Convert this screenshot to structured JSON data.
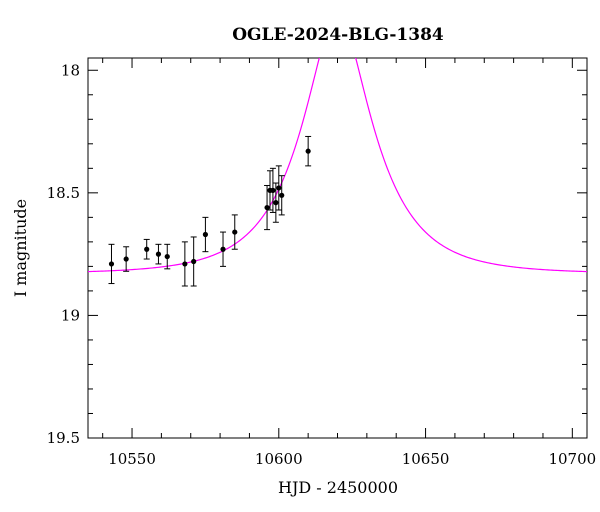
{
  "chart_data": {
    "type": "scatter",
    "title": "OGLE-2024-BLG-1384",
    "xlabel": "HJD - 2450000",
    "ylabel": "I magnitude",
    "xlim": [
      10535,
      10705
    ],
    "ylim": [
      19.5,
      17.95
    ],
    "y_inverted": true,
    "x_ticks": [
      10550,
      10600,
      10650,
      10700
    ],
    "x_tick_labels": [
      "10550",
      "10600",
      "10650",
      "10700"
    ],
    "y_ticks": [
      18,
      18.5,
      19,
      19.5
    ],
    "y_tick_labels": [
      "18",
      "18.5",
      "19",
      "19.5"
    ],
    "grid": false,
    "model_color": "#ff00ff",
    "model": {
      "t0": 10620,
      "u0": 0.4,
      "tE": 23,
      "baseline": 18.83
    },
    "points": [
      {
        "x": 10543,
        "y": 18.79,
        "err": 0.08
      },
      {
        "x": 10548,
        "y": 18.77,
        "err": 0.05
      },
      {
        "x": 10555,
        "y": 18.73,
        "err": 0.04
      },
      {
        "x": 10559,
        "y": 18.75,
        "err": 0.04
      },
      {
        "x": 10562,
        "y": 18.76,
        "err": 0.05
      },
      {
        "x": 10568,
        "y": 18.79,
        "err": 0.09
      },
      {
        "x": 10571,
        "y": 18.78,
        "err": 0.1
      },
      {
        "x": 10575,
        "y": 18.67,
        "err": 0.07
      },
      {
        "x": 10581,
        "y": 18.73,
        "err": 0.07
      },
      {
        "x": 10585,
        "y": 18.66,
        "err": 0.07
      },
      {
        "x": 10596,
        "y": 18.56,
        "err": 0.09
      },
      {
        "x": 10597,
        "y": 18.49,
        "err": 0.08
      },
      {
        "x": 10598,
        "y": 18.49,
        "err": 0.09
      },
      {
        "x": 10599,
        "y": 18.54,
        "err": 0.08
      },
      {
        "x": 10600,
        "y": 18.48,
        "err": 0.09
      },
      {
        "x": 10601,
        "y": 18.51,
        "err": 0.08
      },
      {
        "x": 10610,
        "y": 18.33,
        "err": 0.06
      }
    ]
  }
}
